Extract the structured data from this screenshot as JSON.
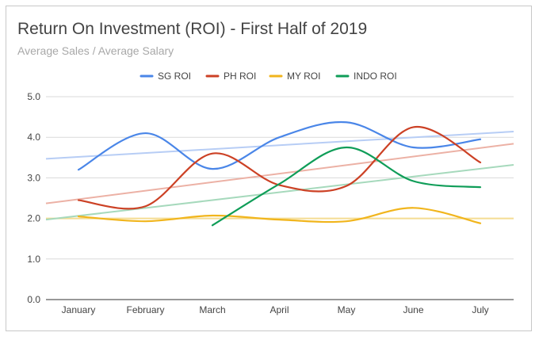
{
  "chart_data": {
    "type": "line",
    "title": "Return On Investment (ROI) - First Half of 2019",
    "subtitle": "Average Sales / Average Salary",
    "categories": [
      "January",
      "February",
      "March",
      "April",
      "May",
      "June",
      "July"
    ],
    "ylim": [
      0,
      5
    ],
    "yticks": [
      "0.0",
      "1.0",
      "2.0",
      "3.0",
      "4.0",
      "5.0"
    ],
    "legend_position": "top",
    "grid": true,
    "smooth": true,
    "trendlines": true,
    "series": [
      {
        "name": "SG ROI",
        "color": "#4a86e8",
        "trend_color": "#b7cdf5",
        "values": [
          3.2,
          4.1,
          3.22,
          4.0,
          4.37,
          3.75,
          3.95
        ],
        "trend": [
          3.47,
          4.14
        ]
      },
      {
        "name": "PH ROI",
        "color": "#cc4125",
        "trend_color": "#ecb1a5",
        "values": [
          2.45,
          2.3,
          3.6,
          2.82,
          2.8,
          4.25,
          3.38
        ],
        "trend": [
          2.37,
          3.84
        ]
      },
      {
        "name": "MY ROI",
        "color": "#f1b51c",
        "trend_color": "#f4dc92",
        "values": [
          2.05,
          1.93,
          2.07,
          1.97,
          1.93,
          2.26,
          1.88
        ],
        "trend": [
          2.0,
          2.0
        ]
      },
      {
        "name": "INDO ROI",
        "color": "#0f9d58",
        "trend_color": "#a6d9bc",
        "values": [
          null,
          null,
          1.83,
          2.85,
          3.75,
          2.92,
          2.77
        ],
        "trend": [
          1.97,
          3.32
        ]
      }
    ]
  }
}
